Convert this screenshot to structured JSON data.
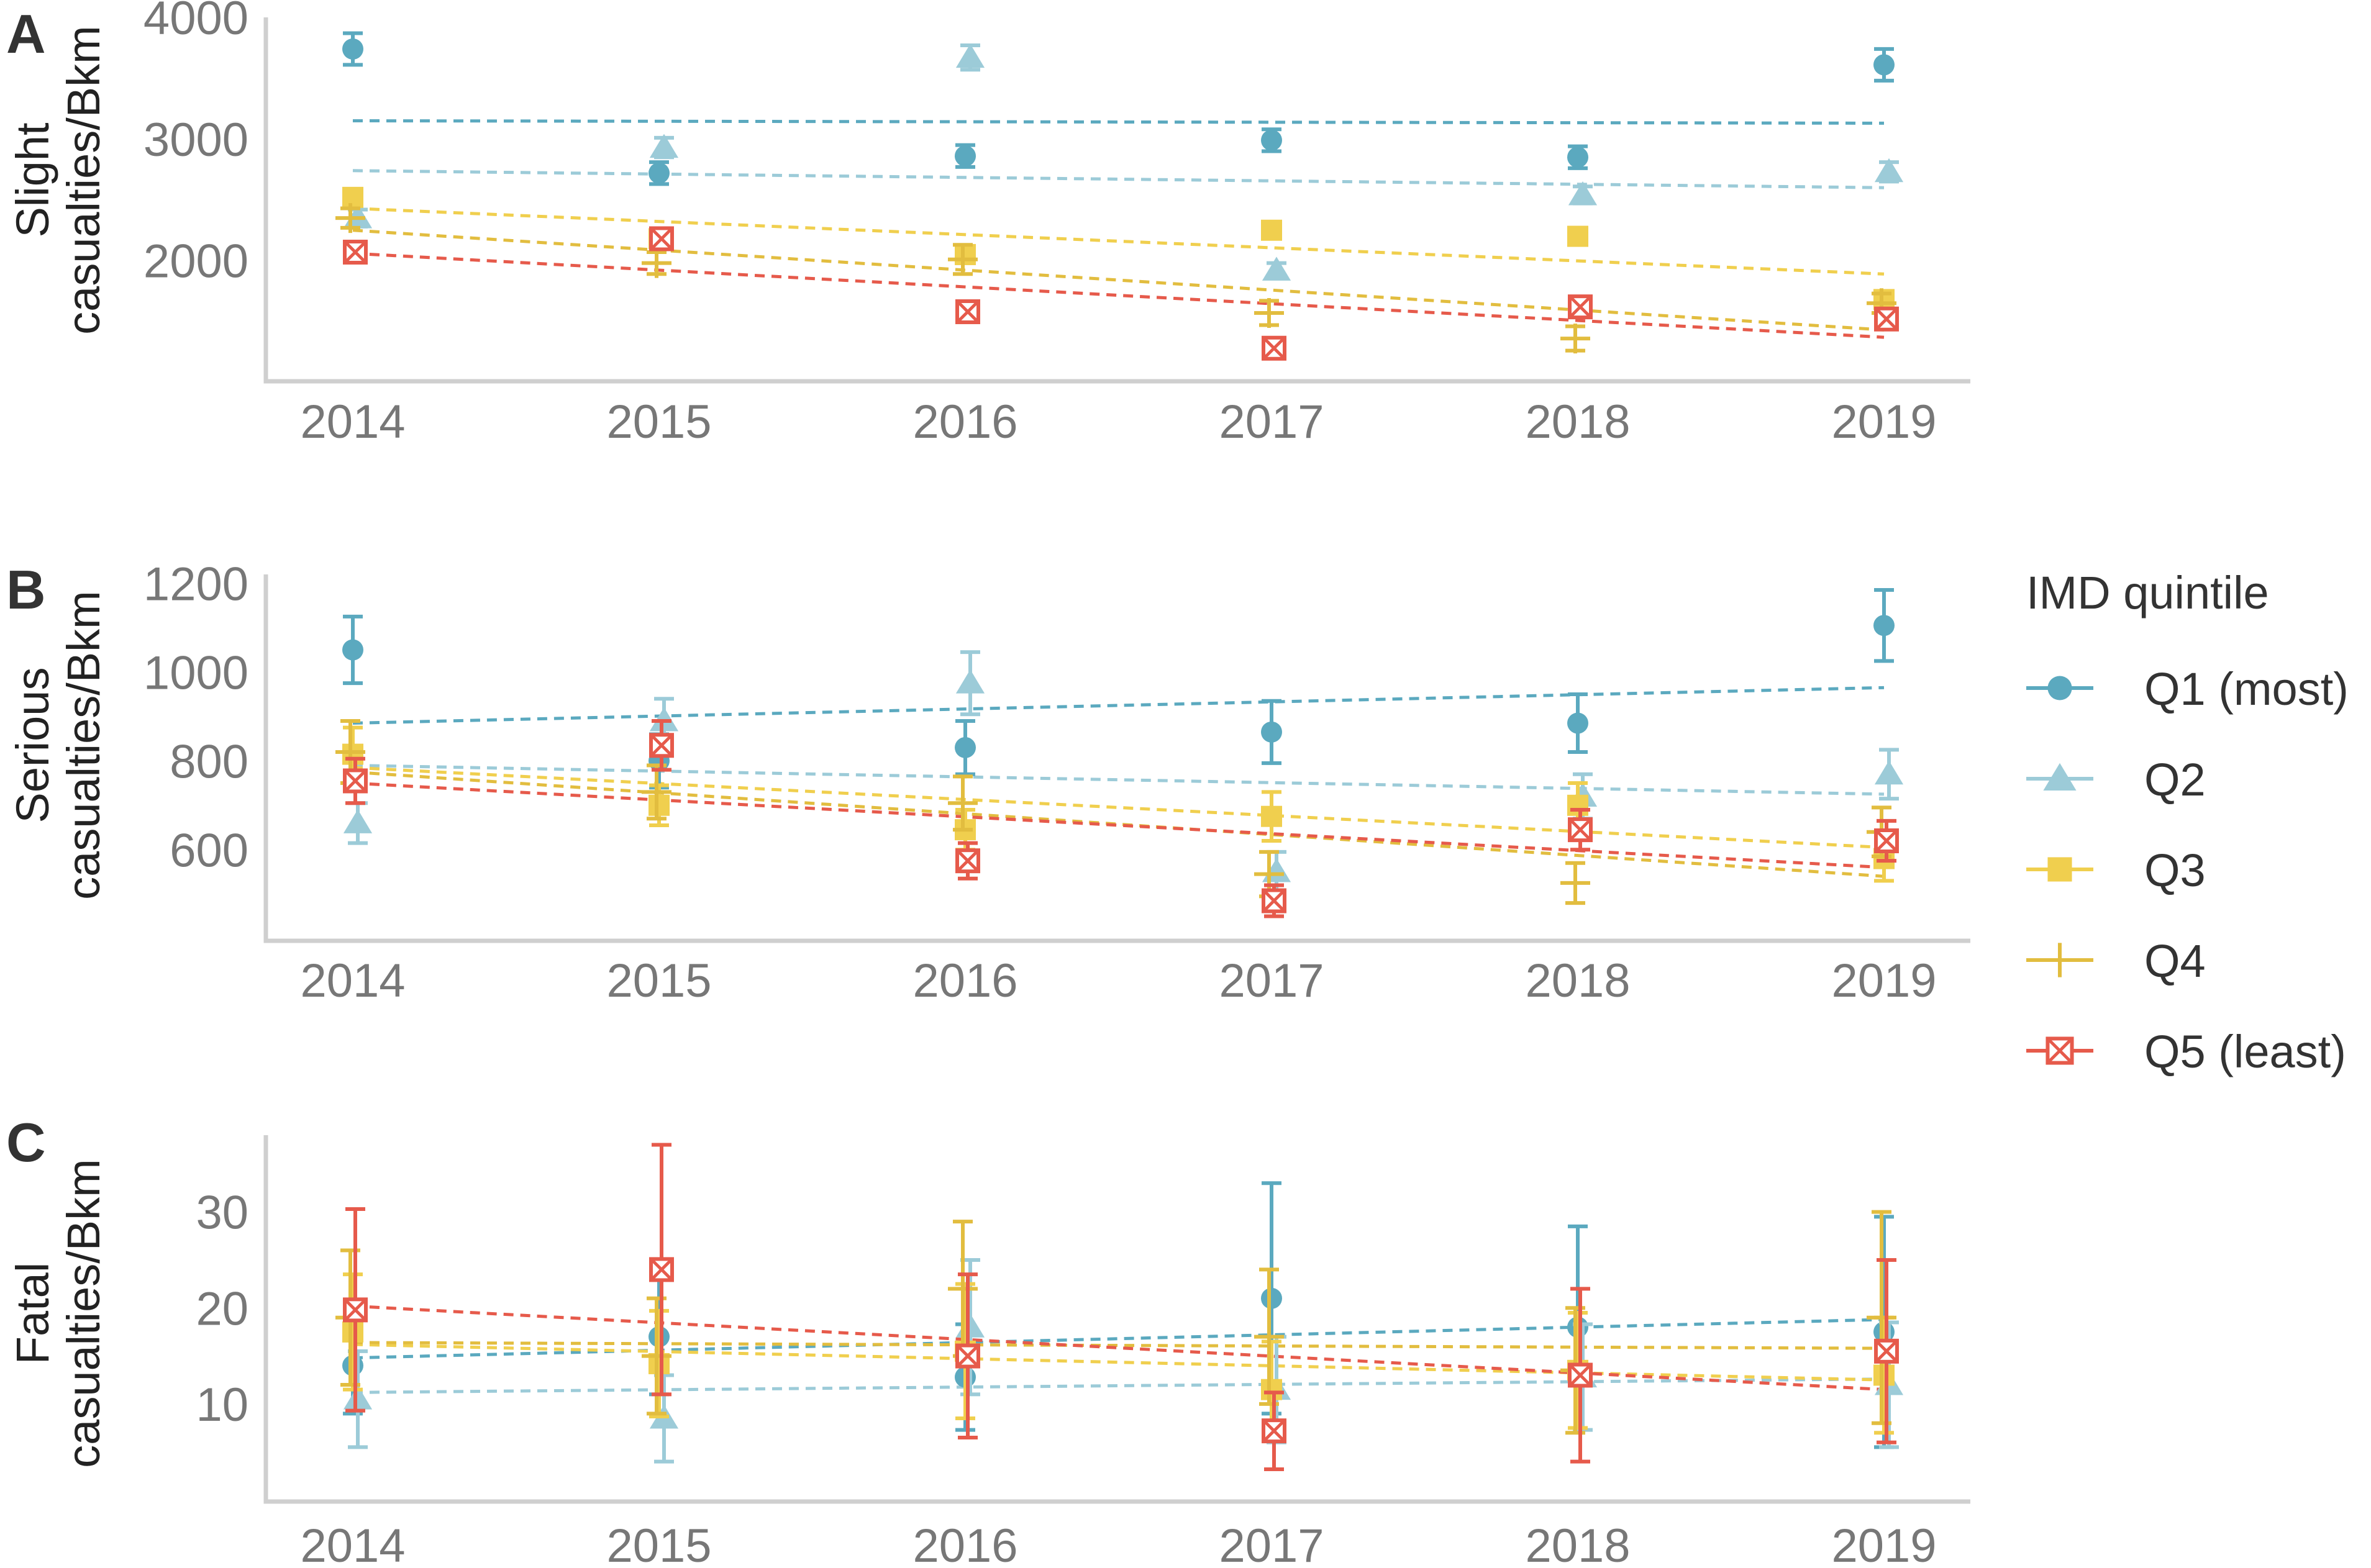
{
  "colors": {
    "Q1": "#5ba9bf",
    "Q2": "#9ccbd8",
    "Q3": "#f0cf4e",
    "Q4": "#e2bd3f",
    "Q5": "#e65a4b"
  },
  "legend": {
    "title": "IMD quintile",
    "position": "right",
    "entries": [
      {
        "key": "Q1",
        "label": "Q1 (most)",
        "marker": "circle"
      },
      {
        "key": "Q2",
        "label": "Q2",
        "marker": "triangle"
      },
      {
        "key": "Q3",
        "label": "Q3",
        "marker": "square"
      },
      {
        "key": "Q4",
        "label": "Q4",
        "marker": "plus"
      },
      {
        "key": "Q5",
        "label": "Q5 (least)",
        "marker": "boxed-x"
      }
    ]
  },
  "chart_data": [
    {
      "panel": "A",
      "type": "scatter",
      "ylabel_lines": [
        "Slight",
        "casualties/Bkm"
      ],
      "x": [
        2014,
        2015,
        2016,
        2017,
        2018,
        2019
      ],
      "ylim": [
        1100,
        4000
      ],
      "yticks": [
        2000,
        3000,
        4000
      ],
      "grid": false,
      "series": [
        {
          "key": "Q1",
          "values": [
            3740,
            2720,
            2860,
            2990,
            2850,
            3610
          ],
          "err": [
            130,
            90,
            90,
            90,
            90,
            130
          ],
          "trend": [
            3150,
            3130
          ]
        },
        {
          "key": "Q2",
          "values": [
            2350,
            2930,
            3670,
            1920,
            2540,
            2730
          ],
          "err": [
            70,
            80,
            100,
            60,
            70,
            80
          ],
          "trend": [
            2740,
            2600
          ]
        },
        {
          "key": "Q3",
          "values": [
            2520,
            2180,
            2050,
            2250,
            2200,
            1680
          ],
          "err": [
            70,
            60,
            70,
            70,
            70,
            60
          ],
          "trend": [
            2430,
            1890
          ]
        },
        {
          "key": "Q4",
          "values": [
            2350,
            1980,
            2010,
            1570,
            1360,
            1650
          ],
          "err": [
            80,
            90,
            120,
            100,
            100,
            80
          ],
          "trend": [
            2250,
            1430
          ]
        },
        {
          "key": "Q5",
          "values": [
            2070,
            2180,
            1580,
            1280,
            1620,
            1520
          ],
          "err": [
            60,
            60,
            50,
            50,
            60,
            50
          ],
          "trend": [
            2060,
            1370
          ]
        }
      ]
    },
    {
      "panel": "B",
      "type": "scatter",
      "ylabel_lines": [
        "Serious",
        "casualties/Bkm"
      ],
      "x": [
        2014,
        2015,
        2016,
        2017,
        2018,
        2019
      ],
      "ylim": [
        420,
        1220
      ],
      "yticks": [
        600,
        800,
        1000,
        1200
      ],
      "grid": false,
      "series": [
        {
          "key": "Q1",
          "values": [
            1050,
            800,
            830,
            865,
            885,
            1105
          ],
          "err": [
            75,
            60,
            60,
            70,
            65,
            80
          ],
          "trend": [
            885,
            965
          ]
        },
        {
          "key": "Q2",
          "values": [
            660,
            890,
            975,
            550,
            720,
            770
          ],
          "err": [
            45,
            50,
            70,
            45,
            50,
            55
          ],
          "trend": [
            790,
            725
          ]
        },
        {
          "key": "Q3",
          "values": [
            815,
            700,
            645,
            675,
            700,
            580
          ],
          "err": [
            60,
            45,
            45,
            55,
            50,
            50
          ],
          "trend": [
            785,
            605
          ]
        },
        {
          "key": "Q4",
          "values": [
            820,
            730,
            705,
            545,
            525,
            640
          ],
          "err": [
            70,
            60,
            60,
            50,
            45,
            55
          ],
          "trend": [
            775,
            540
          ]
        },
        {
          "key": "Q5",
          "values": [
            755,
            835,
            575,
            485,
            645,
            620
          ],
          "err": [
            50,
            55,
            40,
            35,
            45,
            45
          ],
          "trend": [
            750,
            560
          ]
        }
      ]
    },
    {
      "panel": "C",
      "type": "scatter",
      "ylabel_lines": [
        "Fatal",
        "casualties/Bkm"
      ],
      "x": [
        2014,
        2015,
        2016,
        2017,
        2018,
        2019
      ],
      "ylim": [
        1,
        38
      ],
      "yticks": [
        10,
        20,
        30
      ],
      "grid": false,
      "series": [
        {
          "key": "Q1",
          "values": [
            14,
            17,
            12.8,
            21,
            18,
            17.5
          ],
          "err": [
            5,
            6,
            5.5,
            12,
            10.5,
            12
          ],
          "trend": [
            14.8,
            18.8
          ]
        },
        {
          "key": "Q2",
          "values": [
            10.5,
            8.5,
            18,
            11.5,
            12.8,
            12
          ],
          "err": [
            5,
            4.5,
            7,
            5.5,
            5.5,
            6.5
          ],
          "trend": [
            11.2,
            12.6
          ]
        },
        {
          "key": "Q3",
          "values": [
            17.5,
            14.2,
            15.5,
            11.5,
            13.5,
            13
          ],
          "err": [
            6,
            5.5,
            7,
            5,
            6,
            6
          ],
          "trend": [
            16.2,
            12.5
          ]
        },
        {
          "key": "Q4",
          "values": [
            19,
            15,
            22,
            17,
            13.5,
            19
          ],
          "err": [
            7,
            6,
            7,
            7,
            6.5,
            11
          ],
          "trend": [
            16.4,
            15.8
          ]
        },
        {
          "key": "Q5",
          "values": [
            19.8,
            24,
            15,
            7.2,
            13,
            15.5
          ],
          "err": [
            10.5,
            13,
            8.5,
            4,
            9,
            9.5
          ],
          "trend": [
            20.2,
            11.5
          ]
        }
      ]
    }
  ]
}
